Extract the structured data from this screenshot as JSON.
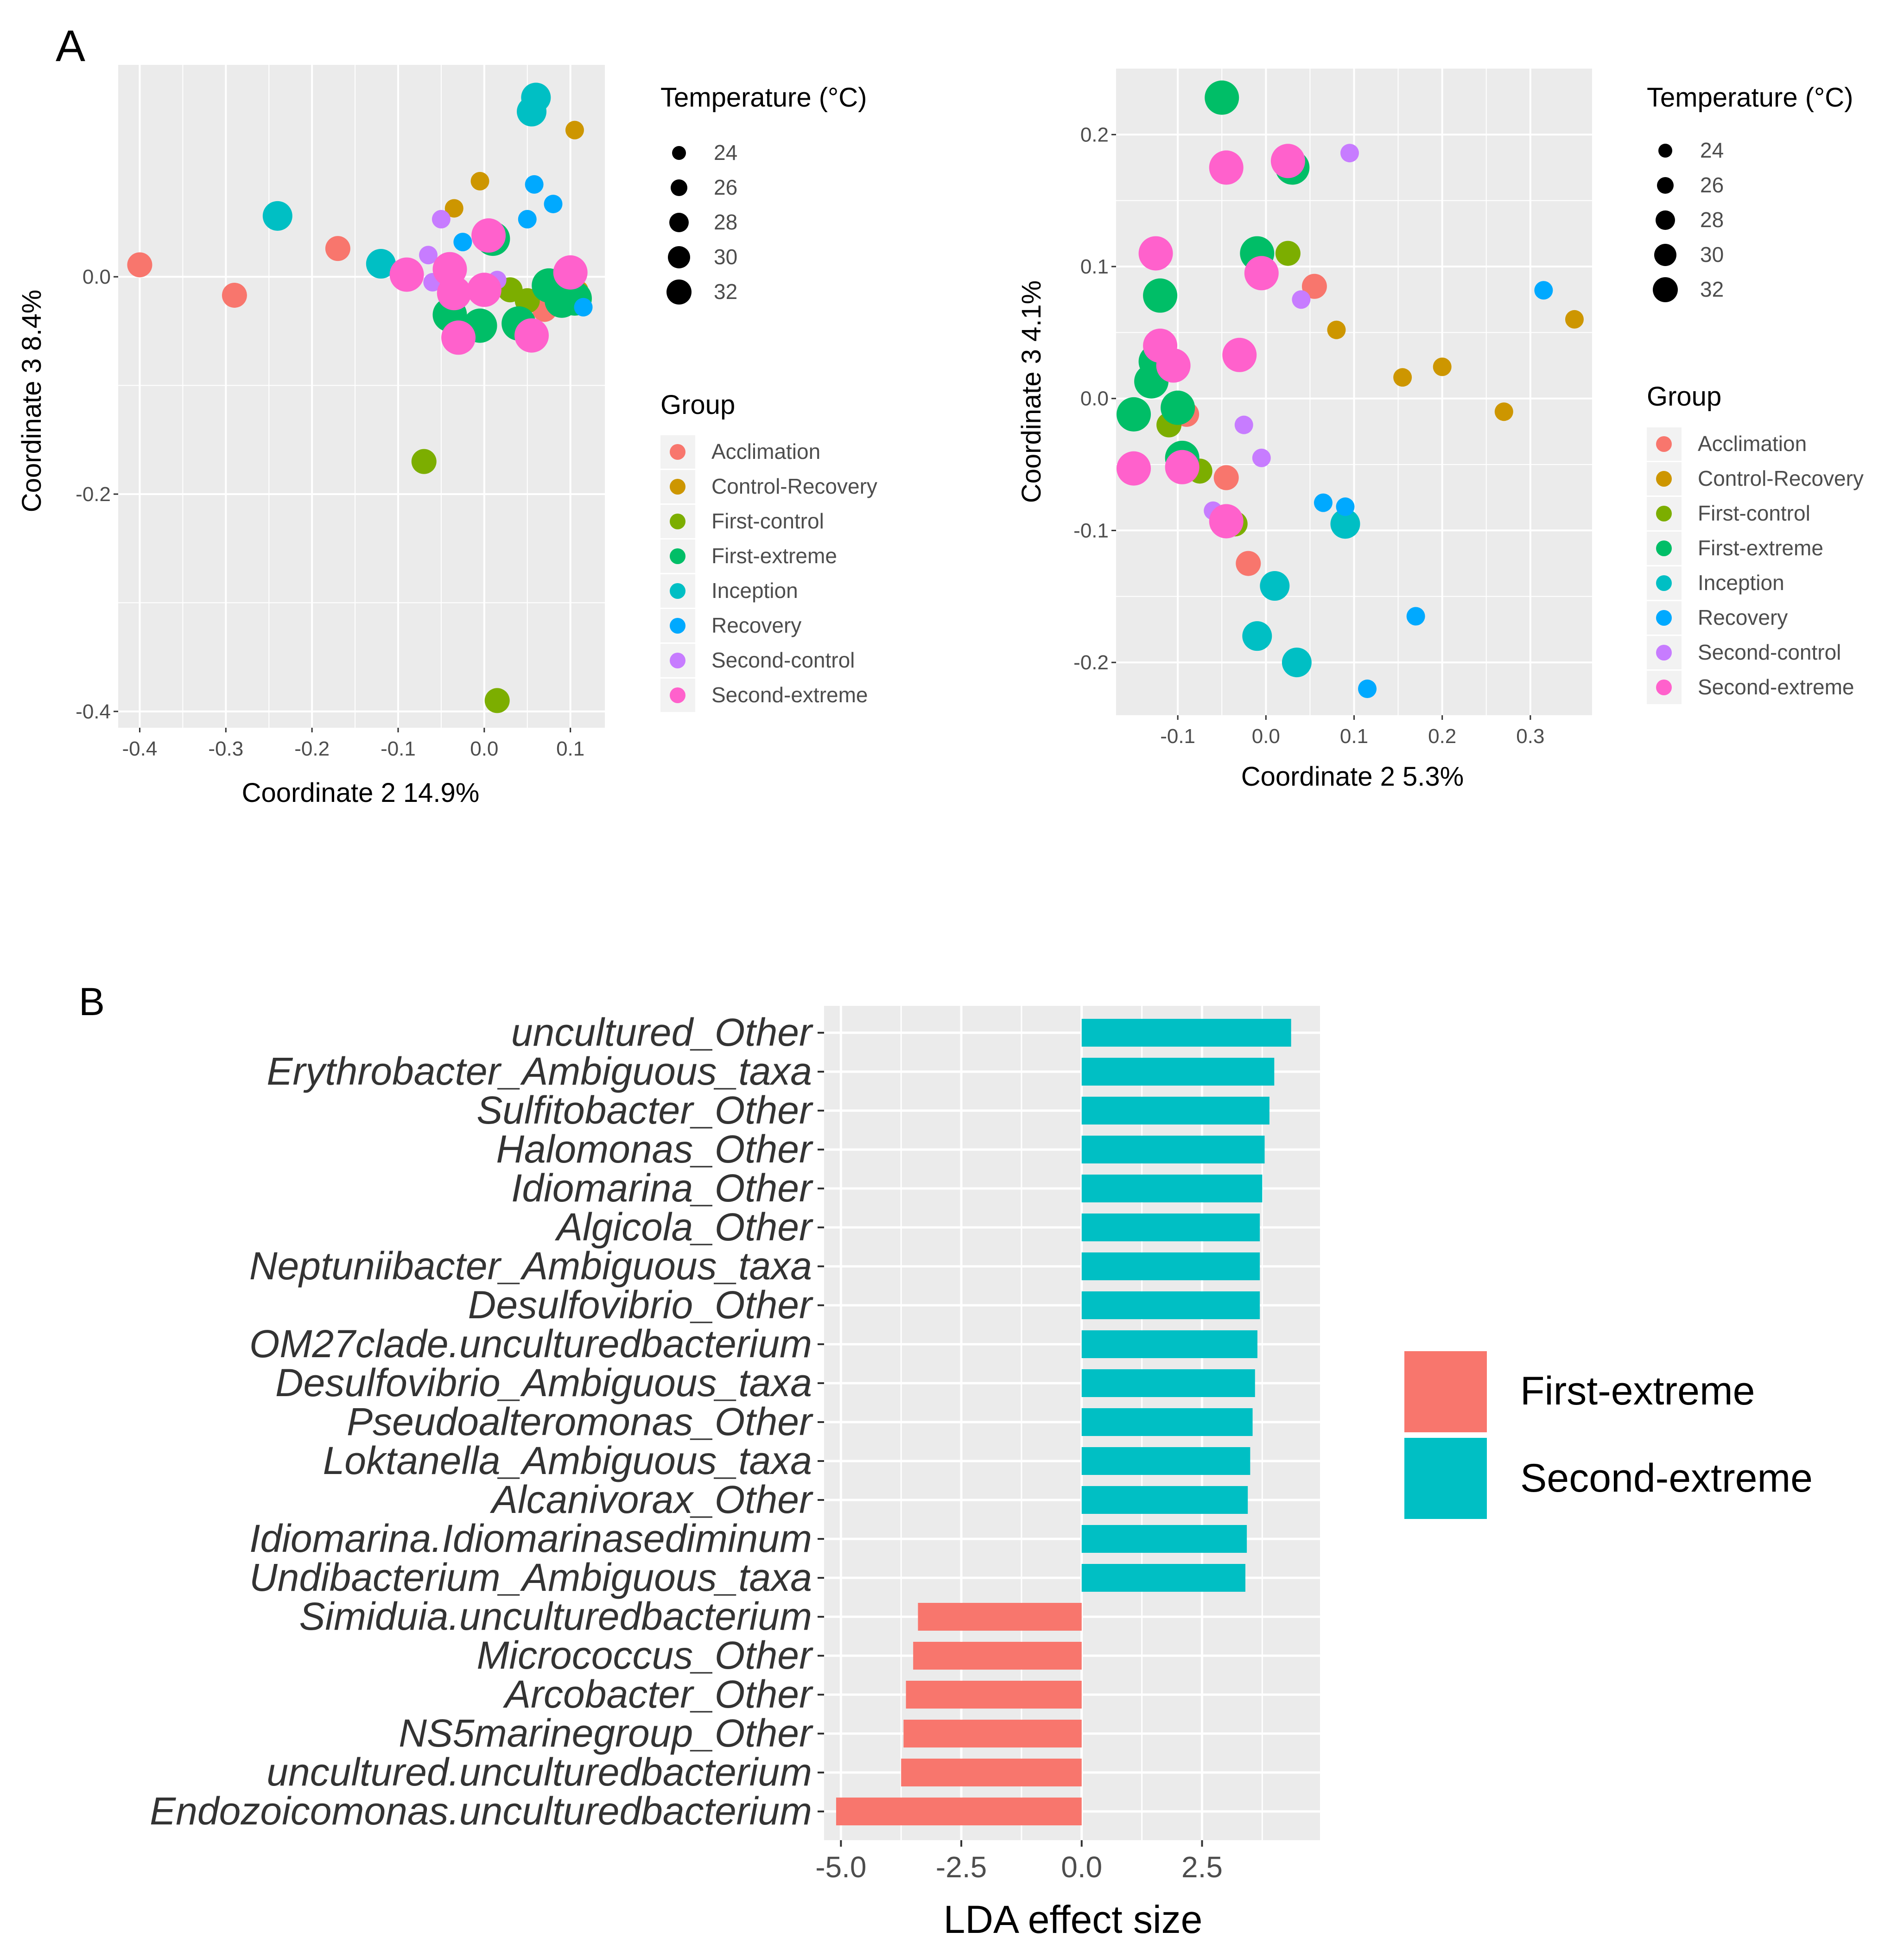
{
  "panels": {
    "a_label": "A",
    "b_label": "B"
  },
  "colors": {
    "panel_bg": "#ebebeb",
    "grid": "#ffffff",
    "axis_text": "#4d4d4d",
    "text": "#000000"
  },
  "legend_common": {
    "size_title": "Temperature (°C)",
    "size_labels": [
      "24",
      "26",
      "28",
      "30",
      "32"
    ],
    "group_title": "Group",
    "groups": [
      "Acclimation",
      "Control-Recovery",
      "First-control",
      "First-extreme",
      "Inception",
      "Recovery",
      "Second-control",
      "Second-extreme"
    ],
    "group_colors": [
      "#f8766d",
      "#cd9600",
      "#7cae00",
      "#00be67",
      "#00bfc4",
      "#00a9ff",
      "#c77cff",
      "#ff61cc"
    ]
  },
  "chart_data": [
    {
      "id": "pcoa1",
      "type": "scatter",
      "title": "",
      "xlabel": "Coordinate 2 14.9%",
      "ylabel": "Coordinate 3 8.4%",
      "xlim": [
        -0.425,
        0.14
      ],
      "ylim": [
        -0.415,
        0.195
      ],
      "xticks": [
        -0.4,
        -0.3,
        -0.2,
        -0.1,
        0.0,
        0.1
      ],
      "xtick_labels": [
        "-0.4",
        "-0.3",
        "-0.2",
        "-0.1",
        "0.0",
        "0.1"
      ],
      "yticks": [
        0.0,
        -0.2,
        -0.4
      ],
      "ytick_labels": [
        "0.0",
        "-0.2",
        "-0.4"
      ],
      "points": [
        {
          "g": 0,
          "x": -0.4,
          "y": 0.011,
          "s": 1
        },
        {
          "g": 0,
          "x": -0.29,
          "y": -0.017,
          "s": 1
        },
        {
          "g": 0,
          "x": -0.17,
          "y": 0.026,
          "s": 1
        },
        {
          "g": 0,
          "x": 0.07,
          "y": -0.03,
          "s": 1
        },
        {
          "g": 1,
          "x": 0.105,
          "y": 0.135,
          "s": 0
        },
        {
          "g": 1,
          "x": -0.005,
          "y": 0.088,
          "s": 0
        },
        {
          "g": 1,
          "x": -0.035,
          "y": 0.063,
          "s": 0
        },
        {
          "g": 1,
          "x": 0.085,
          "y": -0.003,
          "s": 0
        },
        {
          "g": 1,
          "x": 0.11,
          "y": -0.012,
          "s": 0
        },
        {
          "g": 2,
          "x": -0.07,
          "y": -0.17,
          "s": 1
        },
        {
          "g": 2,
          "x": 0.015,
          "y": -0.39,
          "s": 1
        },
        {
          "g": 2,
          "x": 0.03,
          "y": -0.012,
          "s": 1
        },
        {
          "g": 2,
          "x": 0.05,
          "y": -0.022,
          "s": 1
        },
        {
          "g": 3,
          "x": 0.01,
          "y": 0.035,
          "s": 3
        },
        {
          "g": 3,
          "x": -0.04,
          "y": -0.035,
          "s": 3
        },
        {
          "g": 3,
          "x": -0.005,
          "y": -0.045,
          "s": 3
        },
        {
          "g": 3,
          "x": 0.04,
          "y": -0.043,
          "s": 3
        },
        {
          "g": 3,
          "x": 0.075,
          "y": -0.008,
          "s": 3
        },
        {
          "g": 3,
          "x": 0.09,
          "y": -0.022,
          "s": 3
        },
        {
          "g": 3,
          "x": 0.105,
          "y": -0.02,
          "s": 3
        },
        {
          "g": 4,
          "x": 0.06,
          "y": 0.165,
          "s": 2
        },
        {
          "g": 4,
          "x": 0.055,
          "y": 0.152,
          "s": 2
        },
        {
          "g": 4,
          "x": -0.24,
          "y": 0.056,
          "s": 2
        },
        {
          "g": 4,
          "x": -0.12,
          "y": 0.012,
          "s": 2
        },
        {
          "g": 5,
          "x": 0.058,
          "y": 0.085,
          "s": 0
        },
        {
          "g": 5,
          "x": 0.08,
          "y": 0.067,
          "s": 0
        },
        {
          "g": 5,
          "x": 0.05,
          "y": 0.053,
          "s": 0
        },
        {
          "g": 5,
          "x": -0.025,
          "y": 0.032,
          "s": 0
        },
        {
          "g": 5,
          "x": 0.115,
          "y": -0.028,
          "s": 0
        },
        {
          "g": 6,
          "x": -0.05,
          "y": 0.053,
          "s": 0
        },
        {
          "g": 6,
          "x": -0.065,
          "y": 0.02,
          "s": 0
        },
        {
          "g": 6,
          "x": -0.06,
          "y": -0.005,
          "s": 0
        },
        {
          "g": 6,
          "x": 0.015,
          "y": -0.003,
          "s": 0
        },
        {
          "g": 7,
          "x": 0.005,
          "y": 0.038,
          "s": 3
        },
        {
          "g": 7,
          "x": -0.09,
          "y": 0.002,
          "s": 3
        },
        {
          "g": 7,
          "x": -0.04,
          "y": 0.007,
          "s": 3
        },
        {
          "g": 7,
          "x": -0.035,
          "y": -0.015,
          "s": 3
        },
        {
          "g": 7,
          "x": 0.0,
          "y": -0.012,
          "s": 3
        },
        {
          "g": 7,
          "x": -0.03,
          "y": -0.056,
          "s": 3
        },
        {
          "g": 7,
          "x": 0.055,
          "y": -0.054,
          "s": 3
        },
        {
          "g": 7,
          "x": 0.1,
          "y": 0.004,
          "s": 3
        }
      ]
    },
    {
      "id": "pcoa2",
      "type": "scatter",
      "title": "",
      "xlabel": "Coordinate 2 5.3%",
      "ylabel": "Coordinate 3 4.1%",
      "xlim": [
        -0.17,
        0.37
      ],
      "ylim": [
        -0.24,
        0.25
      ],
      "xticks": [
        -0.1,
        0.0,
        0.1,
        0.2,
        0.3
      ],
      "xtick_labels": [
        "-0.1",
        "0.0",
        "0.1",
        "0.2",
        "0.3"
      ],
      "yticks": [
        0.2,
        0.1,
        0.0,
        -0.1,
        -0.2
      ],
      "ytick_labels": [
        "0.2",
        "0.1",
        "0.0",
        "-0.1",
        "-0.2"
      ],
      "points": [
        {
          "g": 0,
          "x": 0.055,
          "y": 0.085,
          "s": 1
        },
        {
          "g": 0,
          "x": -0.09,
          "y": -0.012,
          "s": 1
        },
        {
          "g": 0,
          "x": -0.045,
          "y": -0.06,
          "s": 1
        },
        {
          "g": 0,
          "x": -0.02,
          "y": -0.125,
          "s": 1
        },
        {
          "g": 1,
          "x": 0.08,
          "y": 0.052,
          "s": 0
        },
        {
          "g": 1,
          "x": 0.155,
          "y": 0.016,
          "s": 0
        },
        {
          "g": 1,
          "x": 0.2,
          "y": 0.024,
          "s": 0
        },
        {
          "g": 1,
          "x": 0.27,
          "y": -0.01,
          "s": 0
        },
        {
          "g": 1,
          "x": 0.35,
          "y": 0.06,
          "s": 0
        },
        {
          "g": 2,
          "x": 0.025,
          "y": 0.11,
          "s": 1
        },
        {
          "g": 2,
          "x": -0.11,
          "y": -0.02,
          "s": 1
        },
        {
          "g": 2,
          "x": -0.075,
          "y": -0.055,
          "s": 1
        },
        {
          "g": 2,
          "x": -0.035,
          "y": -0.095,
          "s": 1
        },
        {
          "g": 3,
          "x": -0.05,
          "y": 0.228,
          "s": 3
        },
        {
          "g": 3,
          "x": 0.03,
          "y": 0.175,
          "s": 3
        },
        {
          "g": 3,
          "x": -0.01,
          "y": 0.11,
          "s": 3
        },
        {
          "g": 3,
          "x": -0.12,
          "y": 0.078,
          "s": 3
        },
        {
          "g": 3,
          "x": -0.125,
          "y": 0.028,
          "s": 3
        },
        {
          "g": 3,
          "x": -0.13,
          "y": 0.013,
          "s": 3
        },
        {
          "g": 3,
          "x": -0.15,
          "y": -0.012,
          "s": 3
        },
        {
          "g": 3,
          "x": -0.1,
          "y": -0.007,
          "s": 3
        },
        {
          "g": 3,
          "x": -0.095,
          "y": -0.045,
          "s": 3
        },
        {
          "g": 4,
          "x": 0.09,
          "y": -0.095,
          "s": 2
        },
        {
          "g": 4,
          "x": 0.01,
          "y": -0.142,
          "s": 2
        },
        {
          "g": 4,
          "x": -0.01,
          "y": -0.18,
          "s": 2
        },
        {
          "g": 4,
          "x": 0.035,
          "y": -0.2,
          "s": 2
        },
        {
          "g": 5,
          "x": 0.315,
          "y": 0.082,
          "s": 0
        },
        {
          "g": 5,
          "x": 0.065,
          "y": -0.079,
          "s": 0
        },
        {
          "g": 5,
          "x": 0.09,
          "y": -0.082,
          "s": 0
        },
        {
          "g": 5,
          "x": 0.17,
          "y": -0.165,
          "s": 0
        },
        {
          "g": 5,
          "x": 0.115,
          "y": -0.22,
          "s": 0
        },
        {
          "g": 6,
          "x": 0.095,
          "y": 0.186,
          "s": 0
        },
        {
          "g": 6,
          "x": 0.04,
          "y": 0.075,
          "s": 0
        },
        {
          "g": 6,
          "x": -0.025,
          "y": -0.02,
          "s": 0
        },
        {
          "g": 6,
          "x": -0.005,
          "y": -0.045,
          "s": 0
        },
        {
          "g": 6,
          "x": -0.06,
          "y": -0.085,
          "s": 0
        },
        {
          "g": 7,
          "x": -0.045,
          "y": 0.175,
          "s": 3
        },
        {
          "g": 7,
          "x": 0.025,
          "y": 0.18,
          "s": 3
        },
        {
          "g": 7,
          "x": -0.125,
          "y": 0.11,
          "s": 3
        },
        {
          "g": 7,
          "x": -0.005,
          "y": 0.095,
          "s": 3
        },
        {
          "g": 7,
          "x": -0.12,
          "y": 0.04,
          "s": 3
        },
        {
          "g": 7,
          "x": -0.03,
          "y": 0.033,
          "s": 3
        },
        {
          "g": 7,
          "x": -0.105,
          "y": 0.025,
          "s": 3
        },
        {
          "g": 7,
          "x": -0.15,
          "y": -0.053,
          "s": 3
        },
        {
          "g": 7,
          "x": -0.095,
          "y": -0.052,
          "s": 3
        },
        {
          "g": 7,
          "x": -0.045,
          "y": -0.093,
          "s": 3
        }
      ]
    },
    {
      "id": "lda",
      "type": "bar",
      "orientation": "horizontal",
      "title": "",
      "xlabel": "LDA effect size",
      "ylabel": "",
      "xlim": [
        -5.35,
        4.95
      ],
      "xticks": [
        -5.0,
        -2.5,
        0.0,
        2.5
      ],
      "xtick_labels": [
        "-5.0",
        "-2.5",
        "0.0",
        "2.5"
      ],
      "categories": [
        "uncultured_Other",
        "Erythrobacter_Ambiguous_taxa",
        "Sulfitobacter_Other",
        "Halomonas_Other",
        "Idiomarina_Other",
        "Algicola_Other",
        "Neptuniibacter_Ambiguous_taxa",
        "Desulfovibrio_Other",
        "OM27clade.unculturedbacterium",
        "Desulfovibrio_Ambiguous_taxa",
        "Pseudoalteromonas_Other",
        "Loktanella_Ambiguous_taxa",
        "Alcanivorax_Other",
        "Idiomarina.Idiomarinasediminum",
        "Undibacterium_Ambiguous_taxa",
        "Simiduia.unculturedbacterium",
        "Micrococcus_Other",
        "Arcobacter_Other",
        "NS5marinegroup_Other",
        "uncultured.unculturedbacterium",
        "Endozoicomonas.unculturedbacterium"
      ],
      "values": [
        4.35,
        4.0,
        3.9,
        3.8,
        3.75,
        3.7,
        3.7,
        3.7,
        3.65,
        3.6,
        3.55,
        3.5,
        3.45,
        3.43,
        3.4,
        -3.4,
        -3.5,
        -3.65,
        -3.7,
        -3.75,
        -5.1
      ],
      "groups": [
        "Second-extreme",
        "Second-extreme",
        "Second-extreme",
        "Second-extreme",
        "Second-extreme",
        "Second-extreme",
        "Second-extreme",
        "Second-extreme",
        "Second-extreme",
        "Second-extreme",
        "Second-extreme",
        "Second-extreme",
        "Second-extreme",
        "Second-extreme",
        "Second-extreme",
        "First-extreme",
        "First-extreme",
        "First-extreme",
        "First-extreme",
        "First-extreme",
        "First-extreme"
      ],
      "legend": [
        {
          "label": "First-extreme",
          "color": "#f8766d"
        },
        {
          "label": "Second-extreme",
          "color": "#00bfc4"
        }
      ]
    }
  ]
}
